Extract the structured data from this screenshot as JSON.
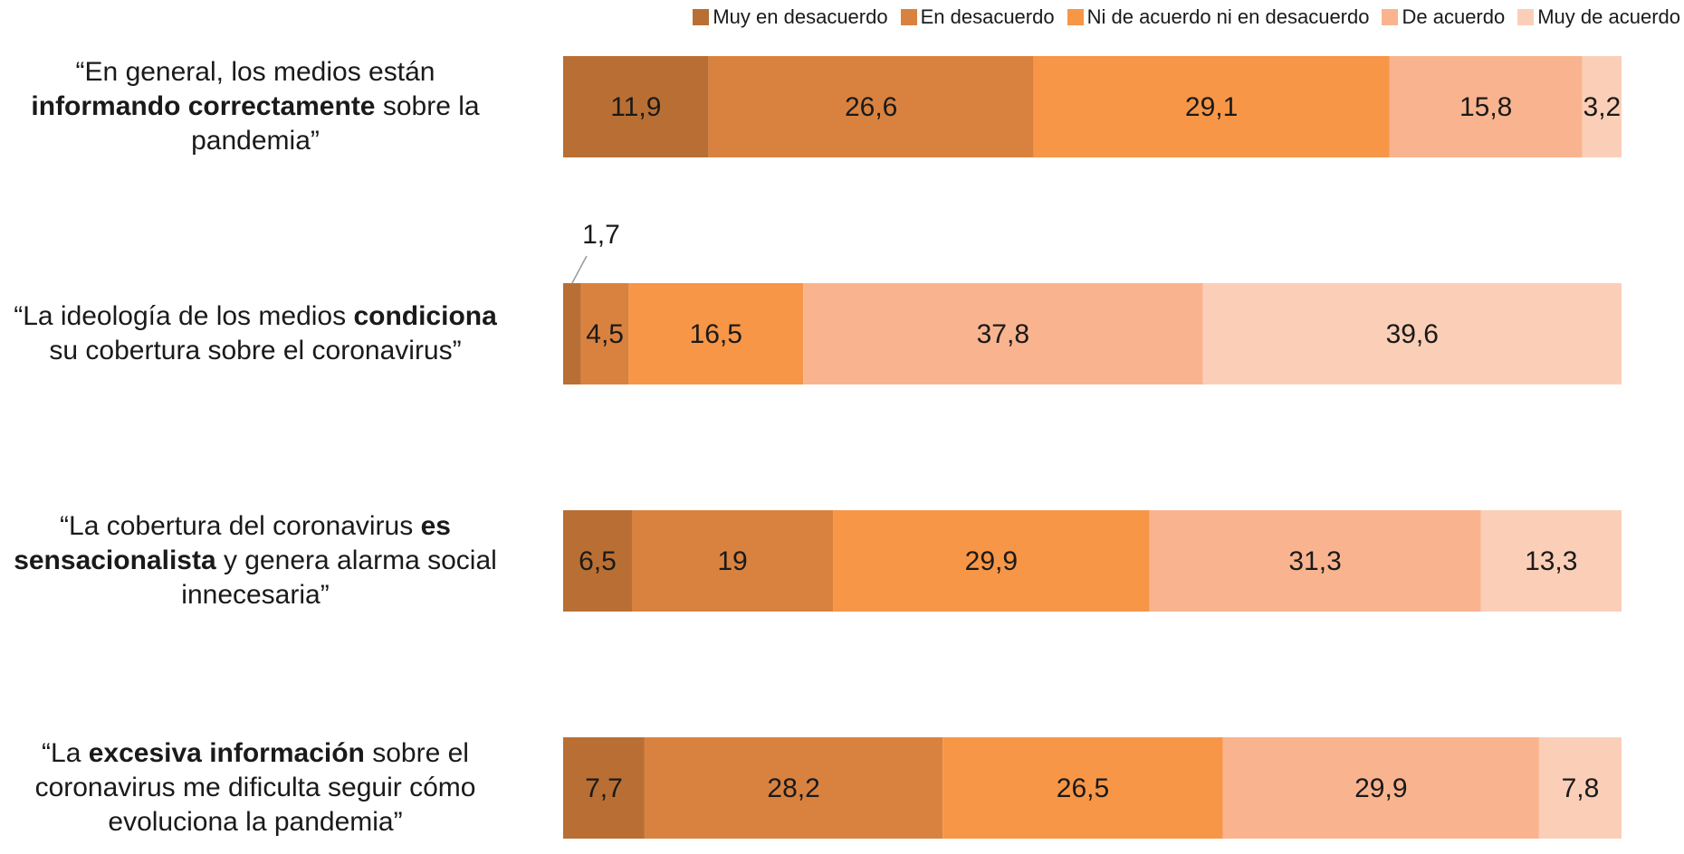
{
  "chart_data": {
    "type": "stacked-barh",
    "stacking": "percent",
    "legend": "top-right",
    "categories": [
      [
        {
          "text": "“En general, los medios están ",
          "bold": false
        },
        {
          "text": "informando correctamente",
          "bold": true
        },
        {
          "text": " sobre la pandemia”",
          "bold": false
        }
      ],
      [
        {
          "text": "“La ideología de los medios ",
          "bold": false
        },
        {
          "text": "condiciona",
          "bold": true
        },
        {
          "text": " su cobertura sobre el coronavirus”",
          "bold": false
        }
      ],
      [
        {
          "text": "“La cobertura del coronavirus ",
          "bold": false
        },
        {
          "text": "es sensacionalista",
          "bold": true
        },
        {
          "text": " y genera alarma social innecesaria”",
          "bold": false
        }
      ],
      [
        {
          "text": "“La ",
          "bold": false
        },
        {
          "text": "excesiva información",
          "bold": true
        },
        {
          "text": " sobre el coronavirus me dificulta seguir cómo evoluciona la pandemia”",
          "bold": false
        }
      ]
    ],
    "series": [
      {
        "name": "Muy en desacuerdo",
        "color": "#b96f33",
        "values": [
          11.9,
          1.7,
          6.5,
          7.7
        ],
        "value_labels": [
          "11,9",
          "1,7",
          "6,5",
          "7,7"
        ]
      },
      {
        "name": "En desacuerdo",
        "color": "#d9823f",
        "values": [
          26.6,
          4.5,
          19,
          28.2
        ],
        "value_labels": [
          "26,6",
          "4,5",
          "19",
          "28,2"
        ]
      },
      {
        "name": "Ni de acuerdo ni en desacuerdo",
        "color": "#f79646",
        "values": [
          29.1,
          16.5,
          29.9,
          26.5
        ],
        "value_labels": [
          "29,1",
          "16,5",
          "29,9",
          "26,5"
        ]
      },
      {
        "name": "De acuerdo",
        "color": "#f9b48f",
        "values": [
          15.8,
          37.8,
          31.3,
          29.9
        ],
        "value_labels": [
          "15,8",
          "37,8",
          "31,3",
          "29,9"
        ]
      },
      {
        "name": "Muy de acuerdo",
        "color": "#fbcfb7",
        "values": [
          3.2,
          39.6,
          13.3,
          7.8
        ],
        "value_labels": [
          "3,2",
          "39,6",
          "13,3",
          "7,8"
        ]
      }
    ]
  }
}
